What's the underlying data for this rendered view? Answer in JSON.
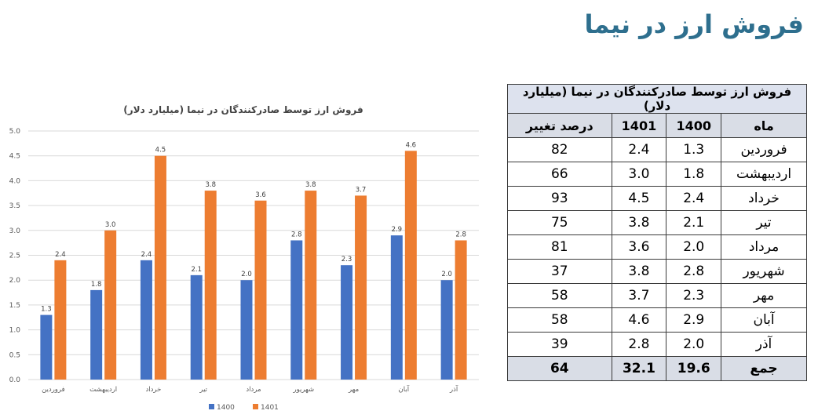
{
  "page": {
    "title": "فروش ارز در نیما"
  },
  "colors": {
    "series_1400": "#4472c4",
    "series_1401": "#ed7d31",
    "title": "#2e6f8e"
  },
  "chart_data": {
    "type": "bar",
    "title": "فروش ارز توسط صادرکنندگان در نیما (میلیارد دلار)",
    "categories": [
      "فروردین",
      "اردیبهشت",
      "خرداد",
      "تیر",
      "مرداد",
      "شهریور",
      "مهر",
      "آبان",
      "آذر"
    ],
    "series": [
      {
        "name": "1400",
        "values": [
          1.3,
          1.8,
          2.4,
          2.1,
          2.0,
          2.8,
          2.3,
          2.9,
          2.0
        ],
        "labels": [
          "1.3",
          "1.8",
          "2.4",
          "2.1",
          "2.0",
          "2.8",
          "2.3",
          "2.9",
          "2.0"
        ]
      },
      {
        "name": "1401",
        "values": [
          2.4,
          3.0,
          4.5,
          3.8,
          3.6,
          3.8,
          3.7,
          4.6,
          2.8
        ],
        "labels": [
          "2.4",
          "3.0",
          "4.5",
          "3.8",
          "3.6",
          "3.8",
          "3.7",
          "4.6",
          "2.8"
        ]
      }
    ],
    "ylim": [
      0,
      5
    ],
    "yticks": [
      "0.0",
      "0.5",
      "1.0",
      "1.5",
      "2.0",
      "2.5",
      "3.0",
      "3.5",
      "4.0",
      "4.5",
      "5.0"
    ],
    "grid": true,
    "legend": "bottom"
  },
  "table": {
    "caption": "فروش ارز توسط صادرکنندگان در نیما (میلیارد دلار)",
    "headers": [
      "ماه",
      "1400",
      "1401",
      "درصد تغییر"
    ],
    "rows": [
      [
        "فروردین",
        "1.3",
        "2.4",
        "82"
      ],
      [
        "اردیبهشت",
        "1.8",
        "3.0",
        "66"
      ],
      [
        "خرداد",
        "2.4",
        "4.5",
        "93"
      ],
      [
        "تیر",
        "2.1",
        "3.8",
        "75"
      ],
      [
        "مرداد",
        "2.0",
        "3.6",
        "81"
      ],
      [
        "شهریور",
        "2.8",
        "3.8",
        "37"
      ],
      [
        "مهر",
        "2.3",
        "3.7",
        "58"
      ],
      [
        "آبان",
        "2.9",
        "4.6",
        "58"
      ],
      [
        "آذر",
        "2.0",
        "2.8",
        "39"
      ]
    ],
    "total": [
      "جمع",
      "19.6",
      "32.1",
      "64"
    ]
  }
}
